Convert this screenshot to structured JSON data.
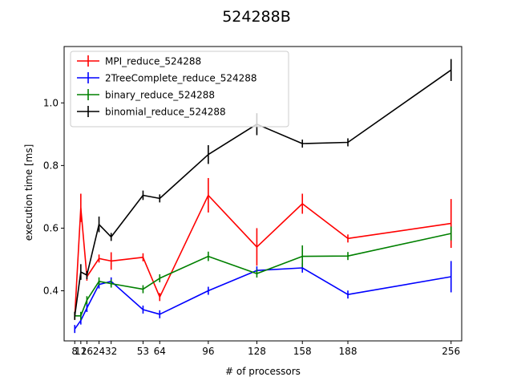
{
  "chart_data": {
    "type": "line",
    "title": "524288B",
    "xlabel": "# of processors",
    "ylabel": "execution time [ms]",
    "xlim": [
      1,
      263
    ],
    "ylim": [
      0.24,
      1.18
    ],
    "xticks": [
      8,
      12,
      16,
      24,
      32,
      53,
      64,
      96,
      128,
      158,
      188,
      256
    ],
    "xtick_labels": [
      "8",
      "12",
      "16",
      "24",
      "32",
      "53",
      "64",
      "96",
      "128",
      "158",
      "188",
      "256"
    ],
    "yticks": [
      0.4,
      0.6,
      0.8,
      1.0
    ],
    "ytick_labels": [
      "0.4",
      "0.6",
      "0.8",
      "1.0"
    ],
    "grid": false,
    "legend_position": "top-left",
    "series": [
      {
        "name": "MPI_reduce_524288",
        "color": "#ff0000",
        "x": [
          8,
          12,
          16,
          24,
          32,
          53,
          64,
          96,
          128,
          158,
          188,
          256
        ],
        "y": [
          0.32,
          0.665,
          0.445,
          0.503,
          0.495,
          0.507,
          0.38,
          0.705,
          0.54,
          0.678,
          0.567,
          0.615
        ],
        "err": [
          0.0,
          0.045,
          0.0,
          0.0,
          0.028,
          0.0,
          0.0,
          0.055,
          0.06,
          0.032,
          0.0,
          0.078
        ]
      },
      {
        "name": "2TreeComplete_reduce_524288",
        "color": "#0000ff",
        "x": [
          8,
          12,
          16,
          24,
          32,
          53,
          64,
          96,
          128,
          158,
          188,
          256
        ],
        "y": [
          0.278,
          0.305,
          0.345,
          0.42,
          0.43,
          0.34,
          0.325,
          0.4,
          0.465,
          0.473,
          0.388,
          0.445
        ],
        "err": [
          0.0,
          0.0,
          0.01,
          0.01,
          0.0,
          0.0,
          0.0,
          0.0,
          0.01,
          0.015,
          0.0,
          0.05
        ]
      },
      {
        "name": "binary_reduce_524288",
        "color": "#008000",
        "x": [
          8,
          12,
          16,
          24,
          32,
          53,
          64,
          96,
          128,
          158,
          188,
          256
        ],
        "y": [
          0.32,
          0.32,
          0.37,
          0.43,
          0.423,
          0.405,
          0.44,
          0.51,
          0.455,
          0.51,
          0.511,
          0.583
        ],
        "err": [
          0.0,
          0.0,
          0.01,
          0.012,
          0.012,
          0.0,
          0.0,
          0.015,
          0.0,
          0.035,
          0.0,
          0.022
        ]
      },
      {
        "name": "binomial_reduce_524288",
        "color": "#000000",
        "x": [
          8,
          12,
          16,
          24,
          32,
          53,
          64,
          96,
          128,
          158,
          188,
          256
        ],
        "y": [
          0.32,
          0.46,
          0.45,
          0.612,
          0.572,
          0.705,
          0.695,
          0.835,
          0.932,
          0.87,
          0.874,
          1.105
        ],
        "err": [
          0.0,
          0.025,
          0.0,
          0.025,
          0.0,
          0.015,
          0.0,
          0.03,
          0.035,
          0.0,
          0.008,
          0.035
        ]
      }
    ]
  }
}
